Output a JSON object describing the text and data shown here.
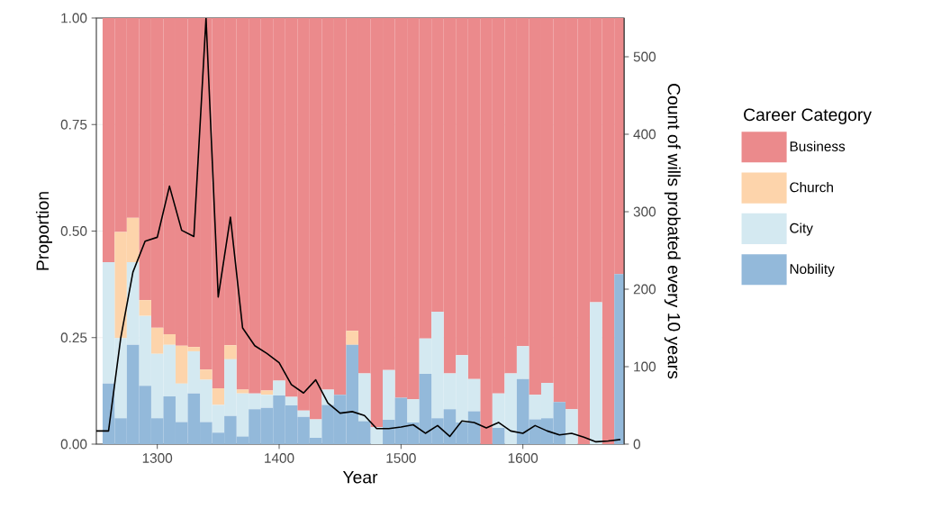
{
  "chart_data": {
    "type": "bar",
    "stacked": true,
    "xlabel": "Year",
    "ylabel": "Proportion",
    "y2label": "Count of wills probated every 10 years",
    "legend_title": "Career Category",
    "legend": "right",
    "grid": true,
    "x": [
      1260,
      1270,
      1280,
      1290,
      1300,
      1310,
      1320,
      1330,
      1340,
      1350,
      1360,
      1370,
      1380,
      1390,
      1400,
      1410,
      1420,
      1430,
      1440,
      1450,
      1460,
      1470,
      1480,
      1490,
      1500,
      1510,
      1520,
      1530,
      1540,
      1550,
      1560,
      1570,
      1580,
      1590,
      1600,
      1610,
      1620,
      1630,
      1640,
      1650,
      1660,
      1670,
      1680
    ],
    "xlim": [
      1250,
      1683
    ],
    "xticks": [
      1300,
      1400,
      1500,
      1600
    ],
    "ylim": [
      0,
      1
    ],
    "yticks": [
      {
        "value": 0,
        "label": "0.00"
      },
      {
        "value": 0.25,
        "label": "0.25"
      },
      {
        "value": 0.5,
        "label": "0.50"
      },
      {
        "value": 0.75,
        "label": "0.75"
      },
      {
        "value": 1,
        "label": "1.00"
      }
    ],
    "y2lim": [
      0,
      550
    ],
    "y2ticks": [
      0,
      100,
      200,
      300,
      400,
      500
    ],
    "series": [
      {
        "name": "Nobility",
        "color": "#93b9da",
        "values": [
          0.142,
          0.061,
          0.233,
          0.137,
          0.061,
          0.112,
          0.052,
          0.119,
          0.052,
          0.027,
          0.066,
          0.018,
          0.082,
          0.085,
          0.114,
          0.091,
          0.064,
          0.015,
          0.092,
          0.116,
          0.233,
          0.054,
          0,
          0.057,
          0.109,
          0.051,
          0.165,
          0.061,
          0.082,
          0.051,
          0.077,
          0,
          0.038,
          0,
          0.153,
          0.058,
          0.061,
          0.099,
          0,
          0,
          0,
          0,
          0.399
        ]
      },
      {
        "name": "City",
        "color": "#d4e9f1",
        "values": [
          0.285,
          0.188,
          0.194,
          0.164,
          0.151,
          0.121,
          0.09,
          0.099,
          0.099,
          0.065,
          0.133,
          0.101,
          0.037,
          0.031,
          0.035,
          0.02,
          0.015,
          0.043,
          0.036,
          0,
          0,
          0.112,
          0.04,
          0.117,
          0,
          0.054,
          0.083,
          0.25,
          0.084,
          0.158,
          0.076,
          0,
          0.081,
          0.166,
          0.077,
          0.058,
          0.083,
          0,
          0.082,
          0,
          0.333,
          0,
          0
        ]
      },
      {
        "name": "Church",
        "color": "#fdd4ab",
        "values": [
          0,
          0.249,
          0.104,
          0.037,
          0.061,
          0.025,
          0.089,
          0.01,
          0.024,
          0.039,
          0.033,
          0.009,
          0,
          0.01,
          0,
          0,
          0,
          0,
          0,
          0,
          0.033,
          0,
          0,
          0,
          0,
          0,
          0,
          0,
          0,
          0,
          0,
          0,
          0,
          0,
          0,
          0,
          0,
          0,
          0,
          0,
          0,
          0,
          0
        ]
      },
      {
        "name": "Business",
        "color": "#eb8a8c",
        "values": [
          0.573,
          0.502,
          0.469,
          0.662,
          0.727,
          0.742,
          0.769,
          0.772,
          0.825,
          0.869,
          0.768,
          0.872,
          0.881,
          0.874,
          0.851,
          0.889,
          0.921,
          0.942,
          0.872,
          0.884,
          0.734,
          0.834,
          0.96,
          0.826,
          0.891,
          0.895,
          0.752,
          0.689,
          0.834,
          0.791,
          0.847,
          1,
          0.881,
          0.834,
          0.77,
          0.884,
          0.856,
          0.901,
          0.918,
          1,
          0.667,
          1,
          0.601
        ]
      },
      {
        "type": "line",
        "axis": "y2",
        "color": "#000000",
        "x": [
          1250,
          1260,
          1270,
          1280,
          1290,
          1300,
          1310,
          1320,
          1330,
          1340,
          1350,
          1360,
          1370,
          1380,
          1390,
          1400,
          1410,
          1420,
          1430,
          1440,
          1450,
          1460,
          1470,
          1480,
          1490,
          1500,
          1510,
          1520,
          1530,
          1540,
          1550,
          1560,
          1570,
          1580,
          1590,
          1600,
          1610,
          1620,
          1630,
          1640,
          1650,
          1660,
          1670,
          1680
        ],
        "values": [
          17,
          17,
          137,
          222,
          262,
          267,
          333,
          276,
          268,
          550,
          190,
          293,
          150,
          127,
          117,
          105,
          77,
          66,
          83,
          53,
          40,
          42,
          37,
          20,
          20,
          22,
          25,
          14,
          24,
          10,
          30,
          28,
          21,
          28,
          17,
          14,
          24,
          17,
          12,
          14,
          9,
          3,
          4,
          6
        ]
      }
    ]
  }
}
